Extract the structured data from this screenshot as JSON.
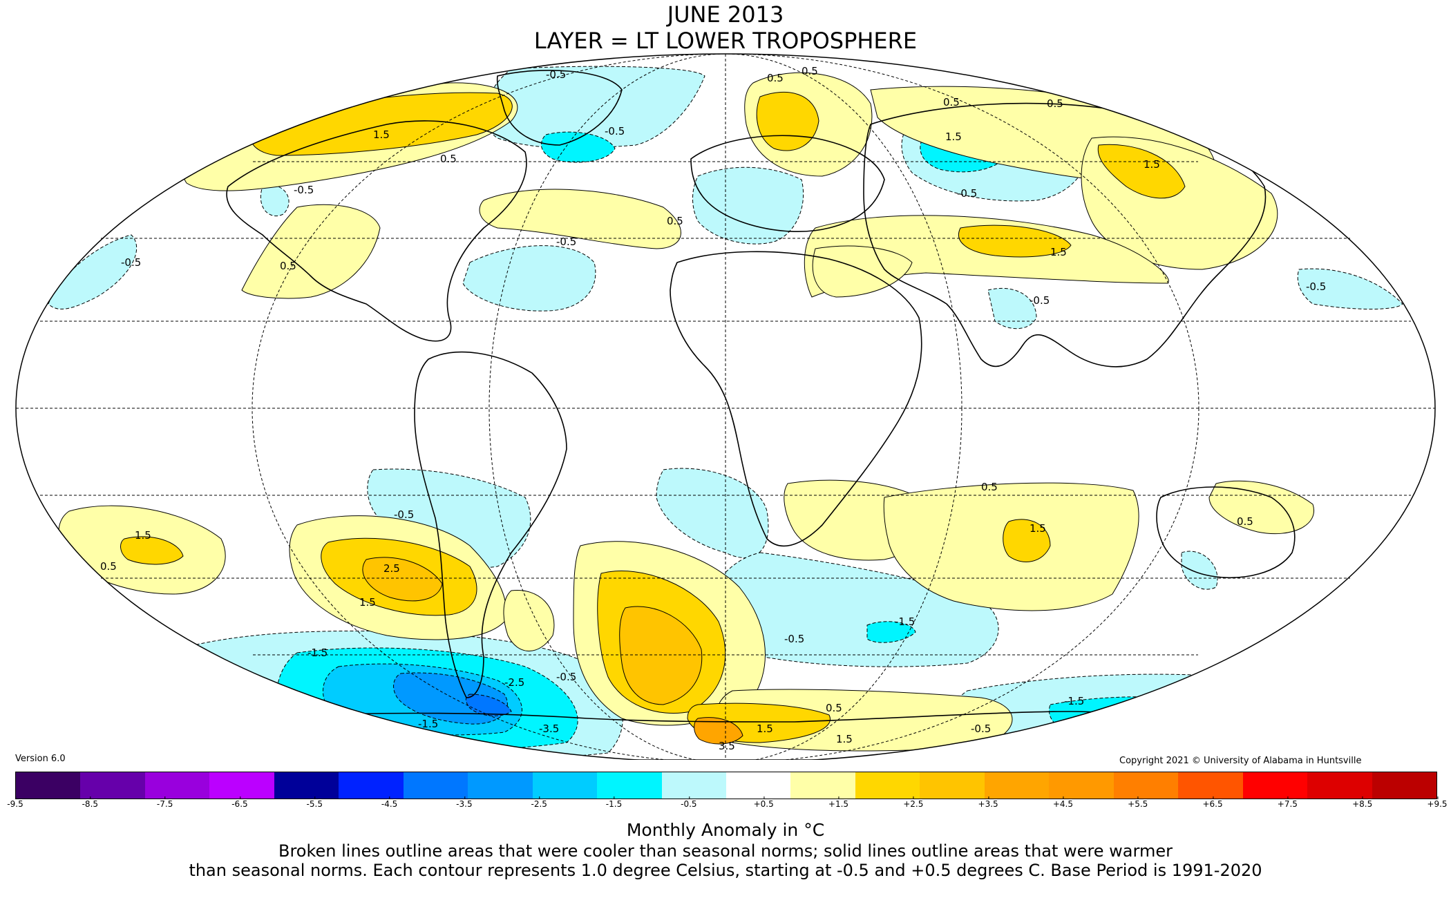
{
  "title": {
    "line1": "JUNE 2013",
    "line2": "LAYER = LT LOWER TROPOSPHERE"
  },
  "version": "Version 6.0",
  "copyright": "Copyright 2021 © University of Alabama in Huntsville",
  "colorbar": {
    "colors": [
      "#3b0063",
      "#6600aa",
      "#9900dd",
      "#bb00ff",
      "#000099",
      "#0022ff",
      "#0077ff",
      "#0099ff",
      "#00ccff",
      "#00f5ff",
      "#bdf9fc",
      "#ffffff",
      "#ffffa8",
      "#ffd700",
      "#ffc400",
      "#ffa500",
      "#ff9900",
      "#ff7f00",
      "#ff5500",
      "#ff0000",
      "#dd0000",
      "#bb0000"
    ],
    "tick_labels": [
      "-9.5",
      "-8.5",
      "-7.5",
      "-6.5",
      "-5.5",
      "-4.5",
      "-3.5",
      "-2.5",
      "-1.5",
      "-0.5",
      "+0.5",
      "+1.5",
      "+2.5",
      "+3.5",
      "+4.5",
      "+5.5",
      "+6.5",
      "+7.5",
      "+8.5",
      "+9.5"
    ],
    "units_label": "Monthly Anomaly in °C"
  },
  "caption": {
    "line1": "Broken lines outline areas that were cooler than seasonal norms; solid lines outline areas that were warmer",
    "line2": "than seasonal norms. Each contour represents 1.0 degree Celsius, starting at -0.5 and +0.5 degrees C. Base Period is 1991-2020"
  },
  "contour_labels": [
    "-0.5",
    "0.5",
    "1.5",
    "-1.5",
    "2.5",
    "-2.5",
    "-3.5",
    "3.5"
  ],
  "palette": {
    "cool_1": "#bdf9fc",
    "cool_2": "#00f5ff",
    "cool_3": "#00ccff",
    "cool_4": "#0099ff",
    "cool_5": "#0077ff",
    "cool_6": "#0022ff",
    "warm_1": "#ffffa8",
    "warm_2": "#ffd700",
    "warm_3": "#ffc400",
    "warm_4": "#ffa500"
  }
}
